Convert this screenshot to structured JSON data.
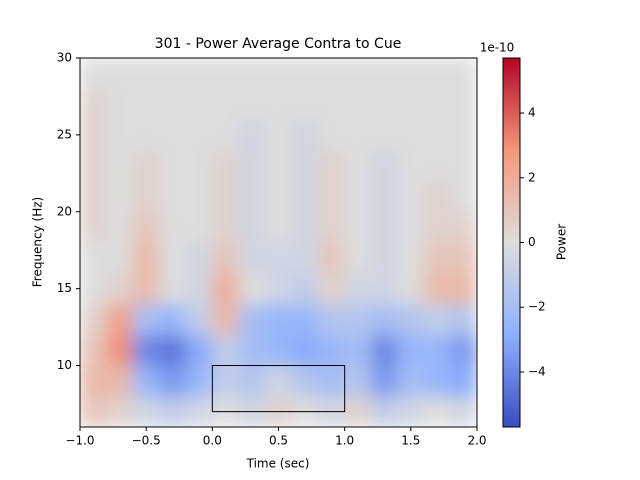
{
  "chart_data": {
    "type": "heatmap",
    "title": "301 - Power Average Contra to Cue",
    "x_label": "Time (sec)",
    "y_label": "Frequency (Hz)",
    "colorbar_label": "Power",
    "colorbar_offset": "1e-10",
    "colormap": "coolwarm",
    "x": [
      -1,
      -0.8,
      -0.6,
      -0.4,
      -0.2,
      0,
      0.2,
      0.4,
      0.6,
      0.8,
      1,
      1.2,
      1.4,
      1.6,
      1.8,
      2
    ],
    "y": [
      6,
      8,
      10,
      12,
      14,
      16,
      18,
      20,
      22,
      24,
      26,
      28,
      30
    ],
    "z": [
      [
        1,
        0.5,
        -0.5,
        -1,
        -0.5,
        0,
        -0.5,
        0.5,
        0,
        -0.5,
        0.5,
        -1,
        -0.5,
        0,
        -0.5
      ],
      [
        1.5,
        1.5,
        -2.5,
        -3.5,
        -2.5,
        -1,
        -1.5,
        -0.5,
        -1.5,
        -2,
        -1.5,
        -3.5,
        -2,
        -2.5,
        -3
      ],
      [
        1,
        3,
        -4,
        -4.5,
        -3,
        -1,
        -2,
        -2.5,
        -3,
        -2.5,
        -2,
        -4,
        -2.5,
        -2.5,
        -3.5
      ],
      [
        0.5,
        2.5,
        -2,
        -2.5,
        -1,
        1.5,
        -2,
        -2.5,
        -2.5,
        -1.5,
        -1.5,
        -2,
        -1.5,
        -1,
        -1.5
      ],
      [
        0,
        0.5,
        1.5,
        0,
        -0.5,
        2,
        0,
        -0.5,
        -1,
        0.5,
        -0.5,
        -0.5,
        0,
        1.5,
        1.5
      ],
      [
        0,
        0,
        1.5,
        0,
        -0.5,
        1,
        -0.5,
        -0.5,
        -0.5,
        1,
        0,
        -0.5,
        0,
        1,
        1
      ],
      [
        0.5,
        0,
        1,
        0,
        0,
        0.5,
        -0.5,
        0,
        -0.5,
        0.5,
        0,
        -0.5,
        0,
        0.5,
        0.5
      ],
      [
        0.5,
        0,
        0.5,
        0,
        0,
        0.5,
        -0.5,
        0,
        -0.5,
        0.5,
        0,
        -0.5,
        0,
        0.5,
        0
      ],
      [
        0.5,
        0,
        0.5,
        0,
        0,
        0.5,
        -0.5,
        0,
        -0.5,
        0.5,
        0,
        -0.5,
        0,
        0,
        0
      ],
      [
        0.5,
        0,
        0,
        0,
        0,
        0,
        -0.5,
        0,
        -0.5,
        0,
        0,
        0,
        0,
        0,
        0
      ],
      [
        0.5,
        0,
        0,
        0,
        0,
        0,
        0,
        0,
        0,
        0,
        0,
        0,
        0,
        0,
        0
      ],
      [
        0,
        0,
        0,
        0,
        0,
        0,
        0,
        0,
        0,
        0,
        0,
        0,
        0,
        0,
        0
      ]
    ],
    "roi": {
      "x": [
        0,
        1
      ],
      "y": [
        7,
        10
      ]
    },
    "xlim": [
      -1,
      2
    ],
    "ylim": [
      6,
      30
    ],
    "clim": [
      -5.7,
      5.7
    ],
    "xticks": [
      {
        "value": -1,
        "label": "−1.0"
      },
      {
        "value": -0.5,
        "label": "−0.5"
      },
      {
        "value": 0,
        "label": "0.0"
      },
      0.5,
      {
        "value": 1,
        "label": "1.0"
      },
      1.5,
      {
        "value": 2,
        "label": "2.0"
      }
    ],
    "yticks": [
      10,
      15,
      20,
      25,
      30
    ],
    "cticks": [
      {
        "value": -4,
        "label": "−4"
      },
      {
        "value": -2,
        "label": "−2"
      },
      0,
      2,
      4
    ]
  }
}
